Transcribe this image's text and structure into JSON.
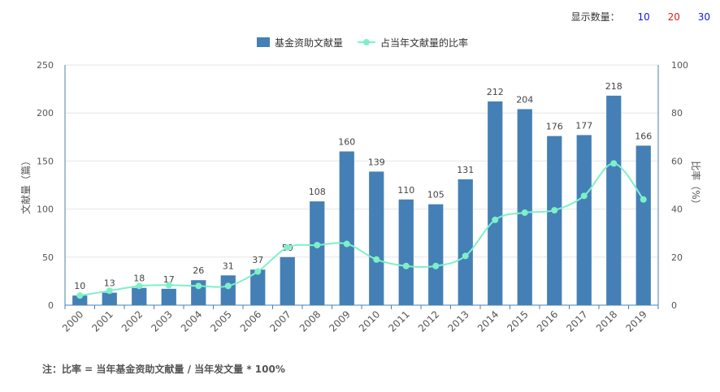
{
  "display_count": {
    "label": "显示数量：",
    "options": [
      {
        "label": "10",
        "color": "#1a1adb"
      },
      {
        "label": "20",
        "color": "#e01c1c"
      },
      {
        "label": "30",
        "color": "#1a1adb"
      }
    ]
  },
  "footnote": "注：比率 = 当年基金资助文献量 / 当年发文量 * 100%",
  "colors": {
    "bar": "#4480b6",
    "line": "#7ef0c8",
    "axis": "#4480b6",
    "grid": "#e6e6e6",
    "text": "#555555"
  },
  "chart_data": {
    "type": "bar",
    "categories": [
      "2000",
      "2001",
      "2002",
      "2003",
      "2004",
      "2005",
      "2006",
      "2007",
      "2008",
      "2009",
      "2010",
      "2011",
      "2012",
      "2013",
      "2014",
      "2015",
      "2016",
      "2017",
      "2018",
      "2019"
    ],
    "series": [
      {
        "name": "基金资助文献量",
        "type": "bar",
        "axis": "left",
        "values": [
          10,
          13,
          18,
          17,
          26,
          31,
          37,
          50,
          108,
          160,
          139,
          110,
          105,
          131,
          212,
          204,
          176,
          177,
          218,
          166
        ]
      },
      {
        "name": "占当年文献量的比率",
        "type": "line",
        "axis": "right",
        "values": [
          4,
          6,
          8,
          8.3,
          8,
          8,
          14,
          24,
          25,
          25.5,
          19,
          16.3,
          16.3,
          20.5,
          35.5,
          38.5,
          39.5,
          45.5,
          59,
          44
        ]
      }
    ],
    "ylabel": "文献量（篇）",
    "ylabel_right": "比率（%）",
    "ylim": [
      0,
      250
    ],
    "yticks": [
      0,
      50,
      100,
      150,
      200,
      250
    ],
    "ylim_right": [
      0,
      100
    ],
    "yticks_right": [
      0,
      20,
      40,
      60,
      80,
      100
    ],
    "grid": true,
    "legend_position": "top-center"
  }
}
